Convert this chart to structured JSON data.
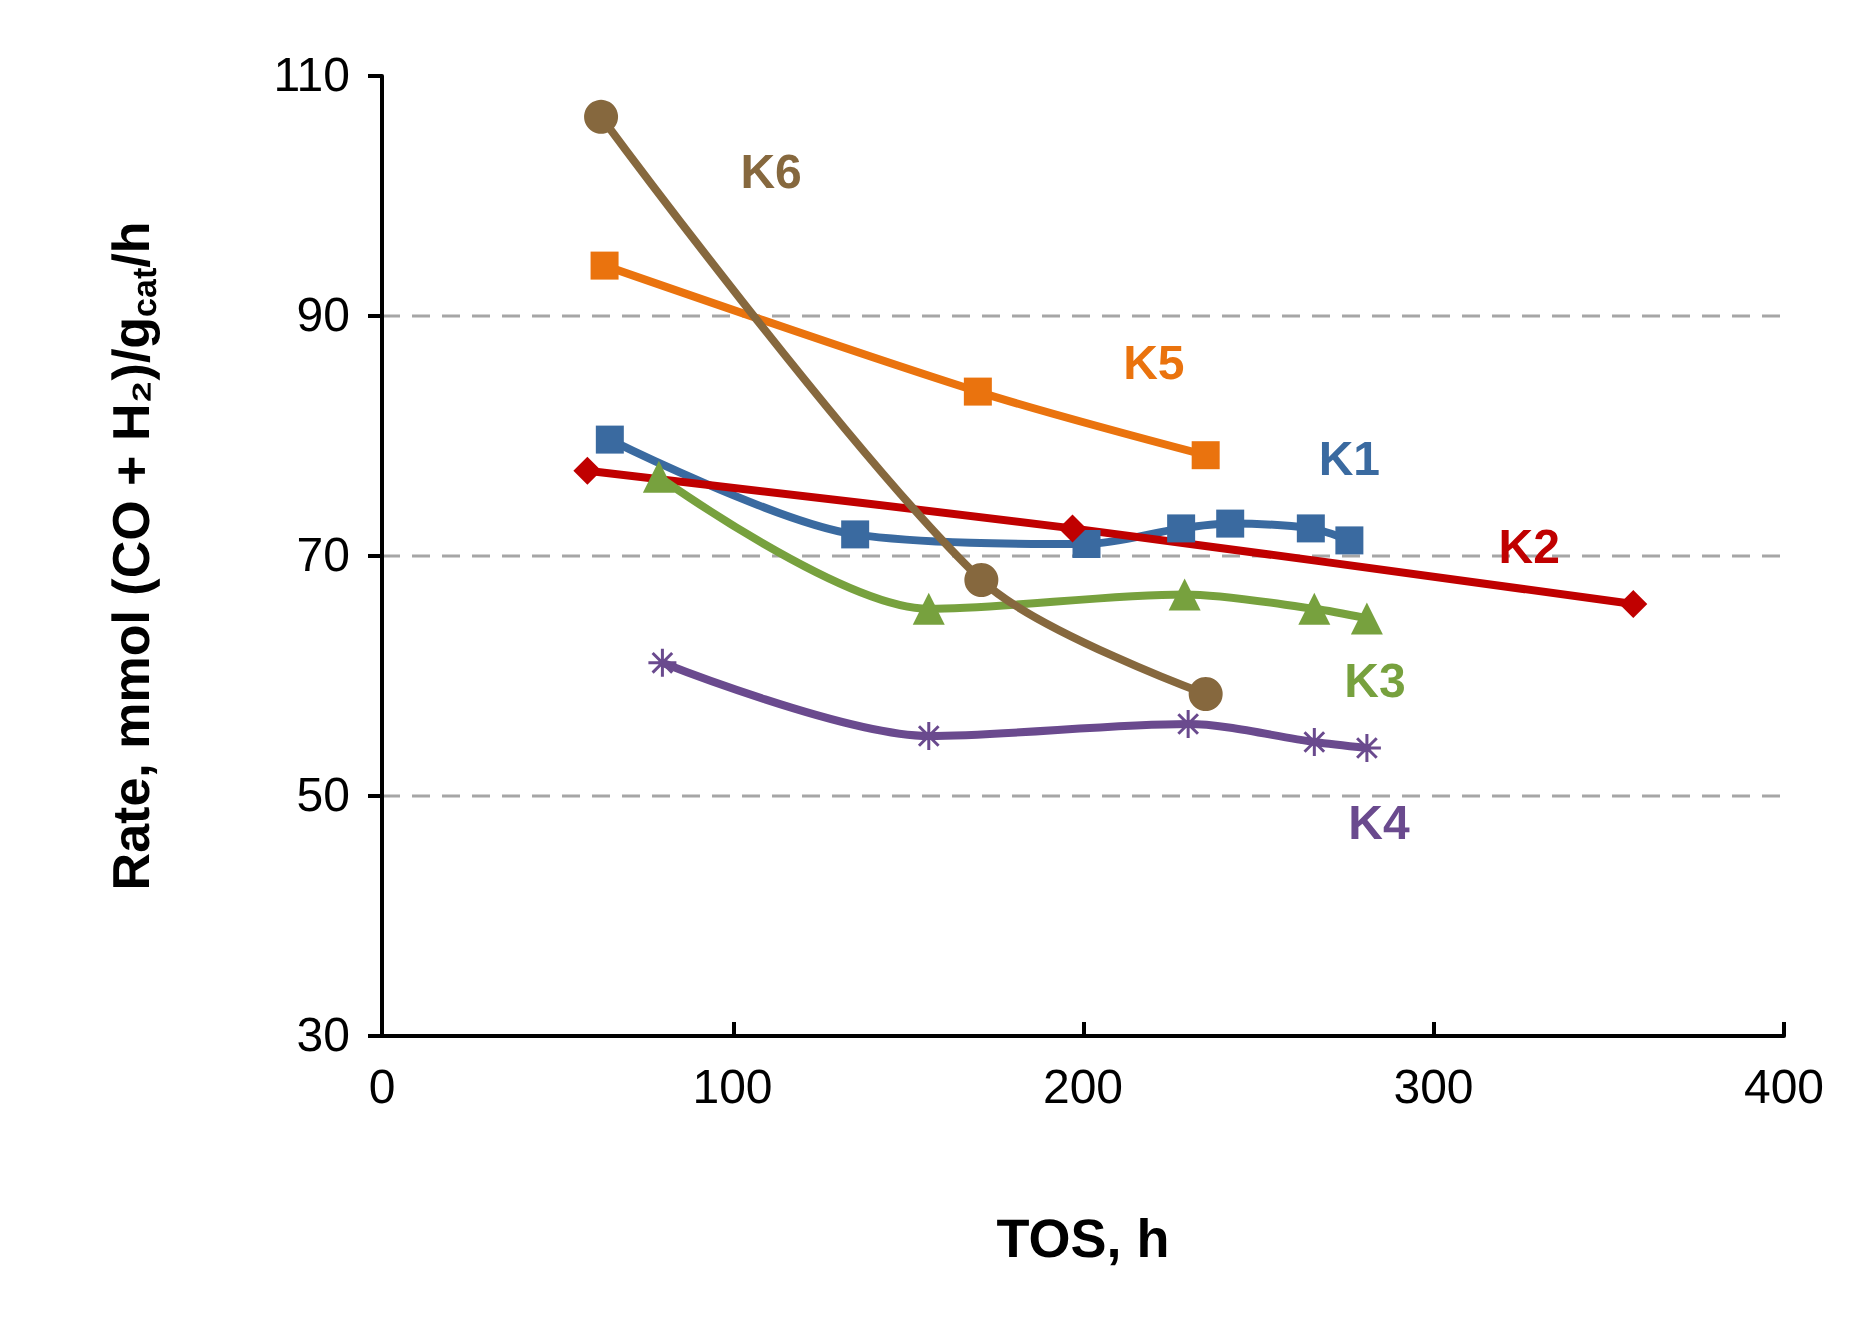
{
  "chart_data": {
    "type": "line",
    "xlabel": "TOS, h",
    "ylabel": "Rate, mmol (CO + H₂)/g$_{cat}$/h",
    "xlim": [
      0,
      400
    ],
    "xticks": [
      0,
      100,
      200,
      300,
      400
    ],
    "ylim": [
      30,
      110
    ],
    "yticks": [
      30,
      50,
      70,
      90,
      110
    ],
    "grid": "y",
    "legend": false,
    "series": [
      {
        "name": "K1",
        "color": "#3a6aa0",
        "marker": "square",
        "x": [
          65,
          135,
          201,
          228,
          242,
          265,
          276
        ],
        "values": [
          79.7,
          71.8,
          71,
          72.3,
          72.7,
          72.3,
          71.3
        ]
      },
      {
        "name": "K2",
        "color": "#c00000",
        "marker": "diamond",
        "x": [
          58.6,
          197,
          357
        ],
        "values": [
          77.1,
          72.3,
          66
        ]
      },
      {
        "name": "K3",
        "color": "#77a13e",
        "marker": "triangle",
        "x": [
          79,
          156,
          229,
          266,
          281
        ],
        "values": [
          76.6,
          65.6,
          66.8,
          65.6,
          64.8
        ]
      },
      {
        "name": "K4",
        "color": "#6a4a8e",
        "marker": "cross",
        "x": [
          80,
          156,
          230,
          266,
          281
        ],
        "values": [
          61.1,
          55,
          56,
          54.5,
          54
        ]
      },
      {
        "name": "K5",
        "color": "#ea730e",
        "marker": "square",
        "x": [
          63.5,
          170,
          235
        ],
        "values": [
          94.2,
          83.7,
          78.4
        ]
      },
      {
        "name": "K6",
        "color": "#86683e",
        "marker": "circle",
        "x": [
          62.5,
          171,
          235
        ],
        "values": [
          106.6,
          68,
          58.5
        ]
      }
    ]
  }
}
